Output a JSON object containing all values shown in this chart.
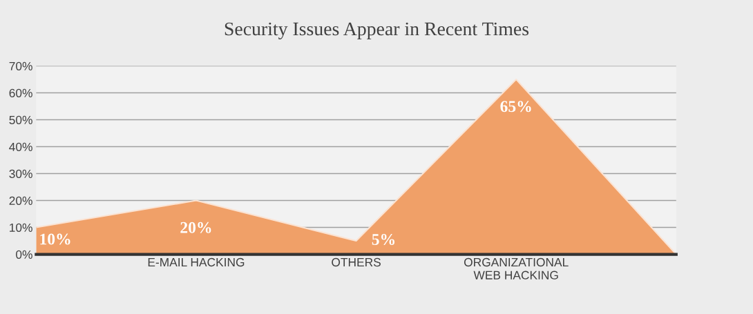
{
  "chart_data": {
    "type": "area",
    "title": "Security Issues Appear in Recent Times",
    "categories": [
      null,
      "E-MAIL HACKING",
      "OTHERS",
      "ORGANIZATIONAL WEB HACKING",
      null
    ],
    "series": [
      {
        "color": "#f0a068",
        "values": [
          10,
          20,
          5,
          65,
          0
        ],
        "value_labels": [
          "10%",
          "20%",
          "5%",
          "65%",
          null
        ]
      }
    ],
    "ylim": [
      0,
      70
    ],
    "yticks": [
      {
        "value": 0,
        "label": "0%"
      },
      {
        "value": 10,
        "label": "10%"
      },
      {
        "value": 20,
        "label": "20%"
      },
      {
        "value": 30,
        "label": "30%"
      },
      {
        "value": 40,
        "label": "40%"
      },
      {
        "value": 50,
        "label": "50%"
      },
      {
        "value": 60,
        "label": "60%"
      },
      {
        "value": 70,
        "label": "70%"
      }
    ],
    "grid": "y",
    "legend": false
  }
}
